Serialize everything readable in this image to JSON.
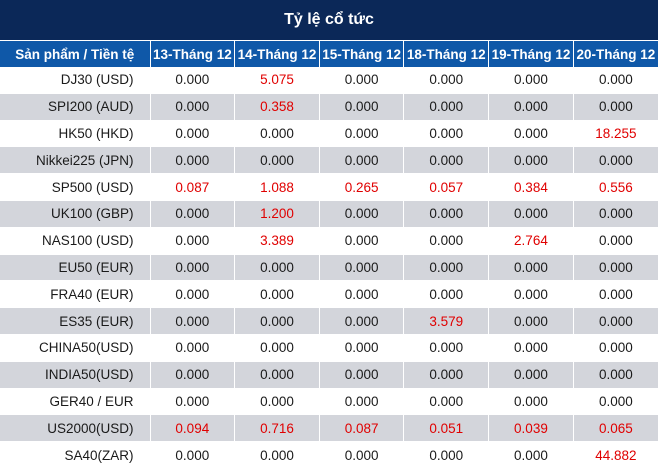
{
  "title": "Tỷ lệ cổ tức",
  "headers": [
    "Sản phẩm / Tiền tệ",
    "13-Tháng 12",
    "14-Tháng 12",
    "15-Tháng 12",
    "18-Tháng 12",
    "19-Tháng 12",
    "20-Tháng 12"
  ],
  "colors": {
    "title_bg": "#0b2858",
    "header_bg": "#0f58a8",
    "stripe": "#d3d5db",
    "positive_value": "#e00000"
  },
  "rows": [
    {
      "product": "DJ30 (USD)",
      "values": [
        "0.000",
        "5.075",
        "0.000",
        "0.000",
        "0.000",
        "0.000"
      ]
    },
    {
      "product": "SPI200 (AUD)",
      "values": [
        "0.000",
        "0.358",
        "0.000",
        "0.000",
        "0.000",
        "0.000"
      ]
    },
    {
      "product": "HK50 (HKD)",
      "values": [
        "0.000",
        "0.000",
        "0.000",
        "0.000",
        "0.000",
        "18.255"
      ]
    },
    {
      "product": "Nikkei225 (JPN)",
      "values": [
        "0.000",
        "0.000",
        "0.000",
        "0.000",
        "0.000",
        "0.000"
      ]
    },
    {
      "product": "SP500 (USD)",
      "values": [
        "0.087",
        "1.088",
        "0.265",
        "0.057",
        "0.384",
        "0.556"
      ]
    },
    {
      "product": "UK100 (GBP)",
      "values": [
        "0.000",
        "1.200",
        "0.000",
        "0.000",
        "0.000",
        "0.000"
      ]
    },
    {
      "product": "NAS100 (USD)",
      "values": [
        "0.000",
        "3.389",
        "0.000",
        "0.000",
        "2.764",
        "0.000"
      ]
    },
    {
      "product": "EU50 (EUR)",
      "values": [
        "0.000",
        "0.000",
        "0.000",
        "0.000",
        "0.000",
        "0.000"
      ]
    },
    {
      "product": "FRA40 (EUR)",
      "values": [
        "0.000",
        "0.000",
        "0.000",
        "0.000",
        "0.000",
        "0.000"
      ]
    },
    {
      "product": "ES35 (EUR)",
      "values": [
        "0.000",
        "0.000",
        "0.000",
        "3.579",
        "0.000",
        "0.000"
      ]
    },
    {
      "product": "CHINA50(USD)",
      "values": [
        "0.000",
        "0.000",
        "0.000",
        "0.000",
        "0.000",
        "0.000"
      ]
    },
    {
      "product": "INDIA50(USD)",
      "values": [
        "0.000",
        "0.000",
        "0.000",
        "0.000",
        "0.000",
        "0.000"
      ]
    },
    {
      "product": "GER40 / EUR",
      "values": [
        "0.000",
        "0.000",
        "0.000",
        "0.000",
        "0.000",
        "0.000"
      ]
    },
    {
      "product": "US2000(USD)",
      "values": [
        "0.094",
        "0.716",
        "0.087",
        "0.051",
        "0.039",
        "0.065"
      ]
    },
    {
      "product": "SA40(ZAR)",
      "values": [
        "0.000",
        "0.000",
        "0.000",
        "0.000",
        "0.000",
        "44.882"
      ]
    }
  ]
}
